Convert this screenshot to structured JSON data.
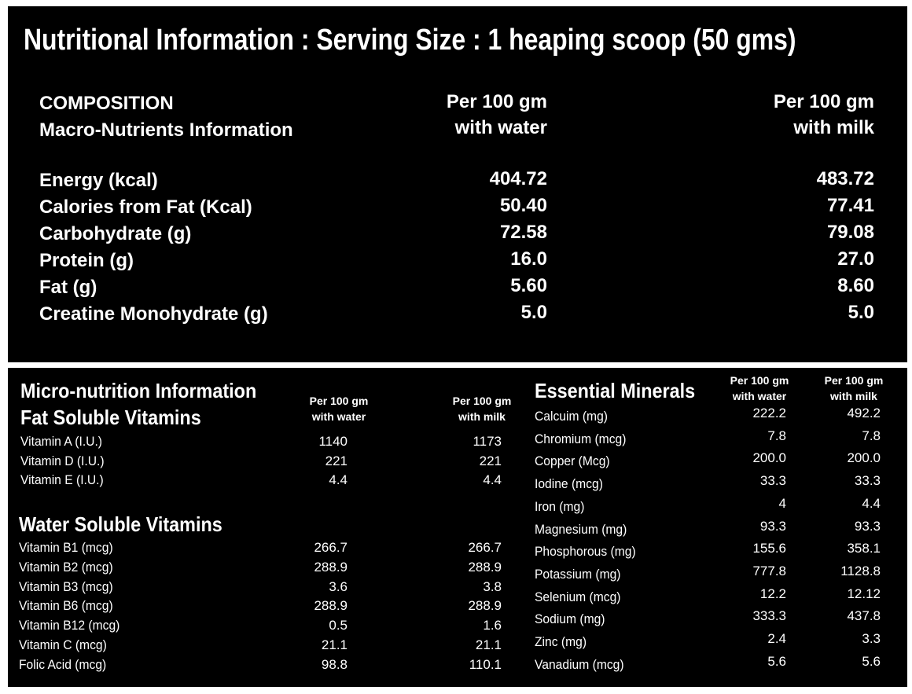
{
  "title": "Nutritional Information : Serving Size : 1 heaping scoop (50 gms)",
  "macro": {
    "heading1": "COMPOSITION",
    "heading2": "Macro-Nutrients Information",
    "col_water_1": "Per 100 gm",
    "col_water_2": "with water",
    "col_milk_1": "Per 100 gm",
    "col_milk_2": "with milk",
    "rows": [
      {
        "label": "Energy (kcal)",
        "water": "404.72",
        "milk": "483.72"
      },
      {
        "label": "Calories from Fat (Kcal)",
        "water": "50.40",
        "milk": "77.41"
      },
      {
        "label": "Carbohydrate  (g)",
        "water": "72.58",
        "milk": "79.08"
      },
      {
        "label": "Protein (g)",
        "water": "16.0",
        "milk": "27.0"
      },
      {
        "label": "Fat (g)",
        "water": "5.60",
        "milk": "8.60"
      },
      {
        "label": "Creatine Monohydrate (g)",
        "water": "5.0",
        "milk": "5.0"
      }
    ]
  },
  "micro": {
    "heading": "Micro-nutrition Information",
    "fat_heading": "Fat Soluble Vitamins",
    "col_water_1": "Per 100 gm",
    "col_water_2": "with water",
    "col_milk_1": "Per 100 gm",
    "col_milk_2": "with milk",
    "fat_rows": [
      {
        "label": "Vitamin A (I.U.)",
        "water": "1140",
        "milk": "1173"
      },
      {
        "label": "Vitamin D (I.U.)",
        "water": "221",
        "milk": "221"
      },
      {
        "label": "Vitamin E (I.U.)",
        "water": "4.4",
        "milk": "4.4"
      }
    ],
    "water_heading": "Water Soluble Vitamins",
    "water_rows": [
      {
        "label": "Vitamin B1 (mcg)",
        "water": "266.7",
        "milk": "266.7"
      },
      {
        "label": "Vitamin B2 (mcg)",
        "water": "288.9",
        "milk": "288.9"
      },
      {
        "label": "Vitamin B3 (mcg)",
        "water": "3.6",
        "milk": "3.8"
      },
      {
        "label": "Vitamin B6 (mcg)",
        "water": "288.9",
        "milk": "288.9"
      },
      {
        "label": "Vitamin B12 (mcg)",
        "water": "0.5",
        "milk": "1.6"
      },
      {
        "label": "Vitamin C (mcg)",
        "water": "21.1",
        "milk": "21.1"
      },
      {
        "label": "Folic Acid (mcg)",
        "water": "98.8",
        "milk": "110.1"
      }
    ]
  },
  "minerals": {
    "heading": "Essential Minerals",
    "col_water_1": "Per 100 gm",
    "col_water_2": "with water",
    "col_milk_1": "Per 100 gm",
    "col_milk_2": "with milk",
    "rows": [
      {
        "label": "Calcuim (mg)",
        "water": "222.2",
        "milk": "492.2"
      },
      {
        "label": "Chromium (mcg)",
        "water": "7.8",
        "milk": "7.8"
      },
      {
        "label": "Copper (Mcg)",
        "water": "200.0",
        "milk": "200.0"
      },
      {
        "label": "Iodine (mcg)",
        "water": "33.3",
        "milk": "33.3"
      },
      {
        "label": "Iron (mg)",
        "water": "4",
        "milk": "4.4"
      },
      {
        "label": "Magnesium (mg)",
        "water": "93.3",
        "milk": "93.3"
      },
      {
        "label": "Phosphorous (mg)",
        "water": "155.6",
        "milk": "358.1"
      },
      {
        "label": "Potassium (mg)",
        "water": "777.8",
        "milk": "1128.8"
      },
      {
        "label": "Selenium (mcg)",
        "water": "12.2",
        "milk": "12.12"
      },
      {
        "label": "Sodium (mg)",
        "water": "333.3",
        "milk": "437.8"
      },
      {
        "label": "Zinc (mg)",
        "water": "2.4",
        "milk": "3.3"
      },
      {
        "label": "Vanadium (mcg)",
        "water": "5.6",
        "milk": "5.6"
      }
    ]
  }
}
